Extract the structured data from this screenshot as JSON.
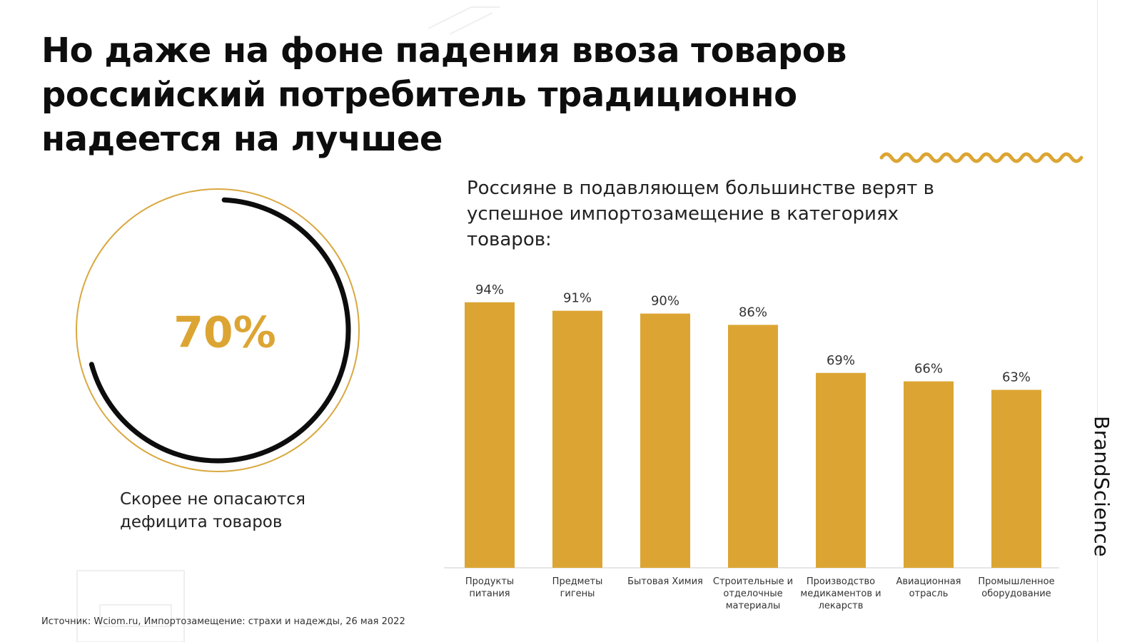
{
  "title_lines": [
    "Но даже на фоне падения ввоза товаров",
    "российский потребитель традиционно",
    "надеется на лучшее"
  ],
  "brand": "BrandScience",
  "colors": {
    "accent": "#DCA533",
    "ring_outline": "#D9A840",
    "ring_arc": "#0d0d0d",
    "axis": "#cccccc",
    "decor": "#eeeeee"
  },
  "gauge": {
    "value_label": "70%",
    "value": 0.7,
    "caption_lines": [
      "Скорее не опасаются",
      "дефицита товаров"
    ]
  },
  "chart_data": {
    "type": "bar",
    "title_lines": [
      "Россияне в подавляющем большинстве верят в",
      "успешное импортозамещение в категориях",
      "товаров:"
    ],
    "categories": [
      [
        "Продукты",
        "питания"
      ],
      [
        "Предметы",
        "гигены"
      ],
      [
        "Бытовая Химия"
      ],
      [
        "Строительные и",
        "отделочные",
        "материалы"
      ],
      [
        "Производство",
        "медикаментов и",
        "лекарств"
      ],
      [
        "Авиационная",
        "отрасль"
      ],
      [
        "Промышленное",
        "оборудование"
      ]
    ],
    "values": [
      94,
      91,
      90,
      86,
      69,
      66,
      63
    ],
    "value_labels": [
      "94%",
      "91%",
      "90%",
      "86%",
      "69%",
      "66%",
      "63%"
    ],
    "ylim": [
      0,
      100
    ],
    "grid": false,
    "legend": "none"
  },
  "source": "Источник: Wciom.ru, Импортозамещение: страхи и надежды, 26 мая 2022"
}
